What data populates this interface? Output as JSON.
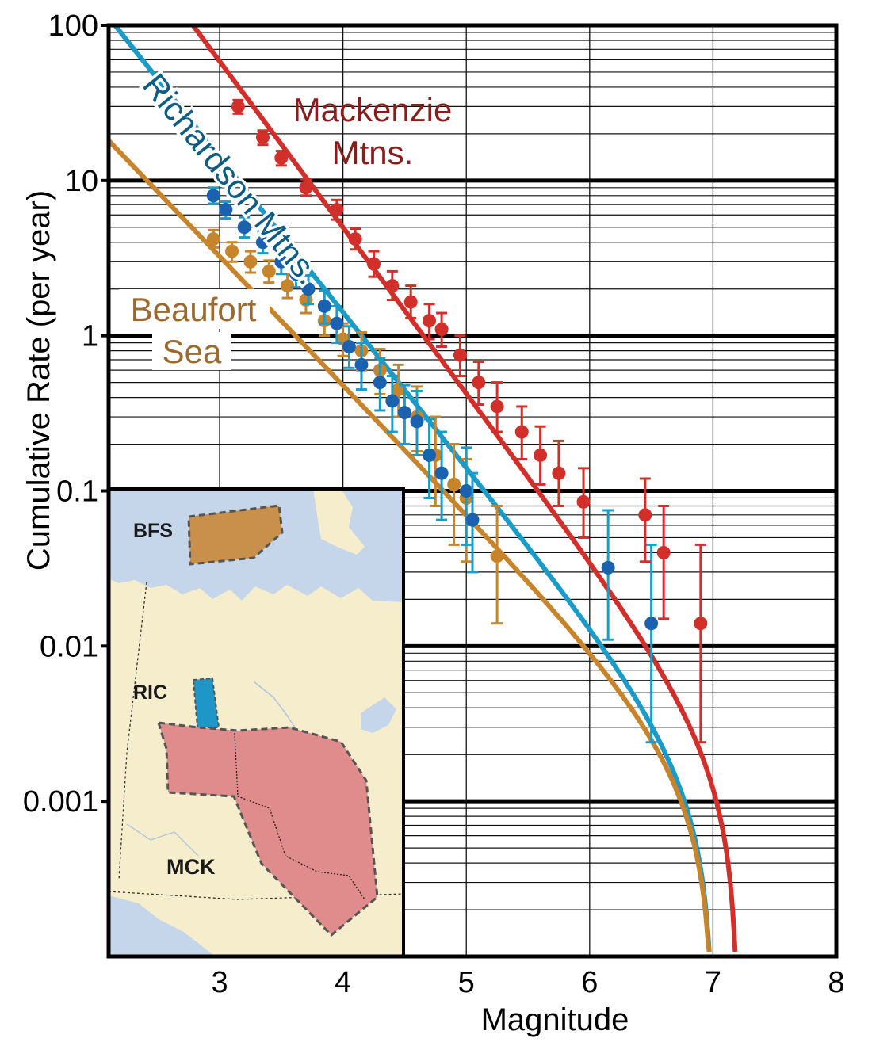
{
  "chart_data": {
    "type": "scatter",
    "xlabel": "Magnitude",
    "ylabel": "Cumulative Rate (per year)",
    "xlim": [
      2.1,
      8
    ],
    "ylim": [
      0.0001,
      100
    ],
    "yscale": "log",
    "grid": true,
    "x_ticks": [
      "3",
      "4",
      "5",
      "6",
      "7",
      "8"
    ],
    "y_ticks": [
      "0.001",
      "0.01",
      "0.1",
      "1",
      "10",
      "100"
    ],
    "series": [
      {
        "name": "Mackenzie Mtns.",
        "name_lines": [
          "Mackenzie",
          "Mtns."
        ],
        "color": "#d32f2a",
        "label_color": "#8b1c1c",
        "fit": {
          "b": 1.07,
          "a10": 5.0,
          "mmax": 7.2
        },
        "points": [
          {
            "x": 3.15,
            "y": 30,
            "ylo": 27,
            "yhi": 33
          },
          {
            "x": 3.35,
            "y": 19,
            "ylo": 17,
            "yhi": 21
          },
          {
            "x": 3.5,
            "y": 14,
            "ylo": 12.5,
            "yhi": 15.5
          },
          {
            "x": 3.7,
            "y": 9.0,
            "ylo": 8.0,
            "yhi": 10.2
          },
          {
            "x": 3.95,
            "y": 6.5,
            "ylo": 5.6,
            "yhi": 7.5
          },
          {
            "x": 4.1,
            "y": 4.2,
            "ylo": 3.6,
            "yhi": 4.9
          },
          {
            "x": 4.25,
            "y": 2.9,
            "ylo": 2.4,
            "yhi": 3.5
          },
          {
            "x": 4.4,
            "y": 2.1,
            "ylo": 1.7,
            "yhi": 2.6
          },
          {
            "x": 4.55,
            "y": 1.65,
            "ylo": 1.3,
            "yhi": 2.1
          },
          {
            "x": 4.7,
            "y": 1.25,
            "ylo": 0.95,
            "yhi": 1.6
          },
          {
            "x": 4.8,
            "y": 1.1,
            "ylo": 0.85,
            "yhi": 1.4
          },
          {
            "x": 4.95,
            "y": 0.75,
            "ylo": 0.55,
            "yhi": 1.0
          },
          {
            "x": 5.1,
            "y": 0.5,
            "ylo": 0.36,
            "yhi": 0.68
          },
          {
            "x": 5.25,
            "y": 0.35,
            "ylo": 0.24,
            "yhi": 0.5
          },
          {
            "x": 5.45,
            "y": 0.24,
            "ylo": 0.16,
            "yhi": 0.35
          },
          {
            "x": 5.6,
            "y": 0.17,
            "ylo": 0.11,
            "yhi": 0.26
          },
          {
            "x": 5.75,
            "y": 0.13,
            "ylo": 0.08,
            "yhi": 0.21
          },
          {
            "x": 5.95,
            "y": 0.085,
            "ylo": 0.05,
            "yhi": 0.14
          },
          {
            "x": 6.45,
            "y": 0.07,
            "ylo": 0.035,
            "yhi": 0.12
          },
          {
            "x": 6.6,
            "y": 0.04,
            "ylo": 0.015,
            "yhi": 0.08
          },
          {
            "x": 6.9,
            "y": 0.014,
            "ylo": 0.0024,
            "yhi": 0.045
          }
        ]
      },
      {
        "name": "Richardson Mtns.",
        "name_lines": [
          "Richardson Mtns."
        ],
        "color": "#1a9bc8",
        "label_color": "#0c5d86",
        "fit": {
          "b": 1.0,
          "a10": 1.42,
          "mmax": 7.0
        },
        "points": [
          {
            "x": 2.95,
            "y": 8.0,
            "ylo": 7.1,
            "yhi": 9.0
          },
          {
            "x": 3.05,
            "y": 6.5,
            "ylo": 5.7,
            "yhi": 7.3
          },
          {
            "x": 3.2,
            "y": 5.0,
            "ylo": 4.3,
            "yhi": 5.8
          },
          {
            "x": 3.35,
            "y": 4.0,
            "ylo": 3.4,
            "yhi": 4.7
          },
          {
            "x": 3.5,
            "y": 3.0,
            "ylo": 2.5,
            "yhi": 3.6
          },
          {
            "x": 3.62,
            "y": 2.5,
            "ylo": 2.05,
            "yhi": 3.0
          },
          {
            "x": 3.72,
            "y": 2.0,
            "ylo": 1.6,
            "yhi": 2.45
          },
          {
            "x": 3.85,
            "y": 1.55,
            "ylo": 1.2,
            "yhi": 1.95
          },
          {
            "x": 3.95,
            "y": 1.2,
            "ylo": 0.9,
            "yhi": 1.55
          },
          {
            "x": 4.05,
            "y": 0.85,
            "ylo": 0.62,
            "yhi": 1.15
          },
          {
            "x": 4.15,
            "y": 0.65,
            "ylo": 0.45,
            "yhi": 0.9
          },
          {
            "x": 4.3,
            "y": 0.5,
            "ylo": 0.33,
            "yhi": 0.72
          },
          {
            "x": 4.4,
            "y": 0.38,
            "ylo": 0.24,
            "yhi": 0.55
          },
          {
            "x": 4.5,
            "y": 0.32,
            "ylo": 0.2,
            "yhi": 0.48
          },
          {
            "x": 4.6,
            "y": 0.28,
            "ylo": 0.17,
            "yhi": 0.44
          },
          {
            "x": 4.7,
            "y": 0.17,
            "ylo": 0.09,
            "yhi": 0.29
          },
          {
            "x": 4.8,
            "y": 0.13,
            "ylo": 0.065,
            "yhi": 0.24
          },
          {
            "x": 5.0,
            "y": 0.1,
            "ylo": 0.045,
            "yhi": 0.19
          },
          {
            "x": 5.05,
            "y": 0.065,
            "ylo": 0.03,
            "yhi": 0.13
          },
          {
            "x": 6.15,
            "y": 0.032,
            "ylo": 0.011,
            "yhi": 0.075
          },
          {
            "x": 6.5,
            "y": 0.014,
            "ylo": 0.0024,
            "yhi": 0.045
          }
        ]
      },
      {
        "name": "Beaufort Sea",
        "name_lines": [
          "Beaufort",
          "Sea"
        ],
        "color": "#c8842b",
        "label_color": "#9b6a2e",
        "fit": {
          "b": 0.83,
          "a10": 0.48,
          "mmax": 7.0
        },
        "points": [
          {
            "x": 2.95,
            "y": 4.2,
            "ylo": 3.7,
            "yhi": 4.8
          },
          {
            "x": 3.1,
            "y": 3.5,
            "ylo": 3.0,
            "yhi": 4.0
          },
          {
            "x": 3.25,
            "y": 3.0,
            "ylo": 2.55,
            "yhi": 3.5
          },
          {
            "x": 3.4,
            "y": 2.6,
            "ylo": 2.2,
            "yhi": 3.05
          },
          {
            "x": 3.55,
            "y": 2.1,
            "ylo": 1.75,
            "yhi": 2.5
          },
          {
            "x": 3.7,
            "y": 1.7,
            "ylo": 1.4,
            "yhi": 2.05
          },
          {
            "x": 3.85,
            "y": 1.25,
            "ylo": 1.0,
            "yhi": 1.55
          },
          {
            "x": 4.0,
            "y": 0.95,
            "ylo": 0.74,
            "yhi": 1.2
          },
          {
            "x": 4.15,
            "y": 0.8,
            "ylo": 0.6,
            "yhi": 1.05
          },
          {
            "x": 4.3,
            "y": 0.6,
            "ylo": 0.42,
            "yhi": 0.82
          },
          {
            "x": 4.45,
            "y": 0.45,
            "ylo": 0.3,
            "yhi": 0.65
          },
          {
            "x": 4.6,
            "y": 0.3,
            "ylo": 0.18,
            "yhi": 0.47
          },
          {
            "x": 4.75,
            "y": 0.17,
            "ylo": 0.08,
            "yhi": 0.3
          },
          {
            "x": 4.9,
            "y": 0.11,
            "ylo": 0.045,
            "yhi": 0.2
          },
          {
            "x": 5.0,
            "y": 0.09,
            "ylo": 0.035,
            "yhi": 0.16
          },
          {
            "x": 5.25,
            "y": 0.038,
            "ylo": 0.014,
            "yhi": 0.08
          }
        ]
      }
    ],
    "inset_map": {
      "regions": [
        {
          "code": "BFS",
          "color": "#c8904a"
        },
        {
          "code": "RIC",
          "color": "#1e96c8"
        },
        {
          "code": "MCK",
          "color": "#e08c8c"
        }
      ],
      "water_color": "#c5d6ea",
      "land_color": "#f6edcc"
    }
  }
}
